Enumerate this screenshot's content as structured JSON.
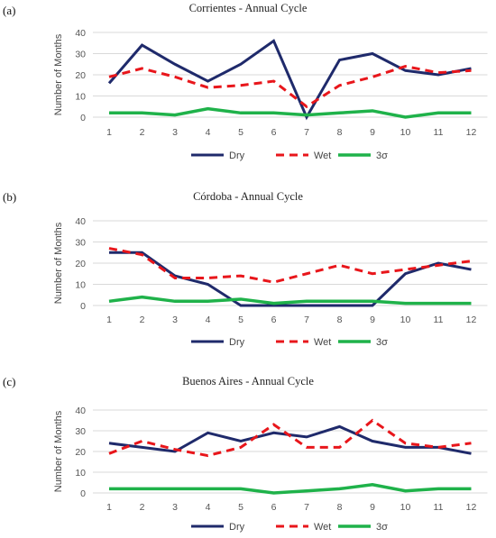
{
  "panel_labels": [
    "(a)",
    "(b)",
    "(c)"
  ],
  "colors": {
    "dry": "#1f2a6b",
    "wet": "#e8161b",
    "sigma": "#1fb24a"
  },
  "chart_data": [
    {
      "type": "line",
      "title": "Corrientes - Annual Cycle",
      "ylabel": "Number of Months",
      "xlabel": "",
      "x": [
        "1",
        "2",
        "3",
        "4",
        "5",
        "6",
        "7",
        "8",
        "9",
        "10",
        "11",
        "12"
      ],
      "ylim": [
        0,
        40
      ],
      "yticks": [
        "0",
        "10",
        "20",
        "30",
        "40"
      ],
      "grid": true,
      "legend": "bottom",
      "series": [
        {
          "name": "Dry",
          "values": [
            16,
            34,
            25,
            17,
            25,
            36,
            0,
            27,
            30,
            22,
            20,
            23
          ]
        },
        {
          "name": "Wet",
          "values": [
            19,
            23,
            19,
            14,
            15,
            17,
            5,
            15,
            19,
            24,
            21,
            22
          ]
        },
        {
          "name": "3σ",
          "values": [
            2,
            2,
            1,
            4,
            2,
            2,
            1,
            2,
            3,
            0,
            2,
            2
          ]
        }
      ]
    },
    {
      "type": "line",
      "title": "Córdoba - Annual Cycle",
      "ylabel": "Number of Months",
      "xlabel": "",
      "x": [
        "1",
        "2",
        "3",
        "4",
        "5",
        "6",
        "7",
        "8",
        "9",
        "10",
        "11",
        "12"
      ],
      "ylim": [
        0,
        40
      ],
      "yticks": [
        "0",
        "10",
        "20",
        "30",
        "40"
      ],
      "grid": true,
      "legend": "bottom",
      "series": [
        {
          "name": "Dry",
          "values": [
            25,
            25,
            14,
            10,
            0,
            0,
            0,
            0,
            0,
            15,
            20,
            17
          ]
        },
        {
          "name": "Wet",
          "values": [
            27,
            24,
            13,
            13,
            14,
            11,
            15,
            19,
            15,
            17,
            19,
            21
          ]
        },
        {
          "name": "3σ",
          "values": [
            2,
            4,
            2,
            2,
            3,
            1,
            2,
            2,
            2,
            1,
            1,
            1
          ]
        }
      ]
    },
    {
      "type": "line",
      "title": "Buenos Aires - Annual Cycle",
      "ylabel": "Number of Months",
      "xlabel": "",
      "x": [
        "1",
        "2",
        "3",
        "4",
        "5",
        "6",
        "7",
        "8",
        "9",
        "10",
        "11",
        "12"
      ],
      "ylim": [
        0,
        40
      ],
      "yticks": [
        "0",
        "10",
        "20",
        "30",
        "40"
      ],
      "grid": true,
      "legend": "bottom",
      "series": [
        {
          "name": "Dry",
          "values": [
            24,
            22,
            20,
            29,
            25,
            29,
            27,
            32,
            25,
            22,
            22,
            19
          ]
        },
        {
          "name": "Wet",
          "values": [
            19,
            25,
            21,
            18,
            22,
            33,
            22,
            22,
            35,
            24,
            22,
            24
          ]
        },
        {
          "name": "3σ",
          "values": [
            2,
            2,
            2,
            2,
            2,
            0,
            1,
            2,
            4,
            1,
            2,
            2
          ]
        }
      ]
    }
  ]
}
